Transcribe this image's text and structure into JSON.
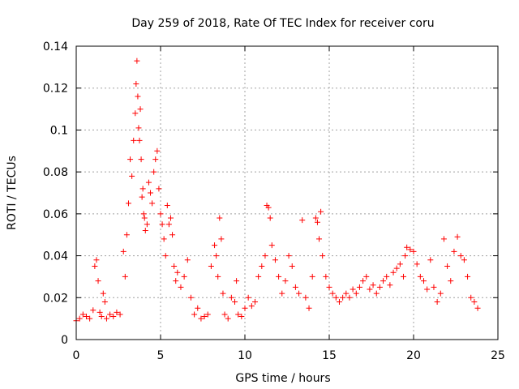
{
  "chart_data": {
    "type": "scatter",
    "title": "Day 259 of 2018, Rate Of TEC Index for receiver coru",
    "xlabel": "GPS time / hours",
    "ylabel": "ROTI / TECUs",
    "xlim": [
      0,
      25
    ],
    "ylim": [
      0,
      0.14
    ],
    "xticks": [
      0,
      5,
      10,
      15,
      20,
      25
    ],
    "xtick_labels": [
      "0",
      "5",
      "10",
      "15",
      "20",
      "25"
    ],
    "yticks": [
      0,
      0.02,
      0.04,
      0.06,
      0.08,
      0.1,
      0.12,
      0.14
    ],
    "ytick_labels": [
      "0",
      "0.02",
      "0.04",
      "0.06",
      "0.08",
      "0.1",
      "0.12",
      "0.14"
    ],
    "grid": true,
    "marker": "plus",
    "color": "#ff0000",
    "series": [
      {
        "x": [
          0.0,
          0.2,
          0.4,
          0.6,
          0.8,
          1.0,
          1.1,
          1.2,
          1.3,
          1.4,
          1.5,
          1.6,
          1.7,
          1.8,
          2.0,
          2.2,
          2.4,
          2.6,
          2.8,
          2.9,
          3.0,
          3.1,
          3.2,
          3.3,
          3.4,
          3.5,
          3.55,
          3.6,
          3.65,
          3.7,
          3.75,
          3.8,
          3.85,
          3.9,
          3.95,
          4.0,
          4.05,
          4.1,
          4.2,
          4.3,
          4.4,
          4.5,
          4.6,
          4.7,
          4.8,
          4.9,
          5.0,
          5.1,
          5.2,
          5.3,
          5.4,
          5.5,
          5.6,
          5.7,
          5.8,
          5.9,
          6.0,
          6.2,
          6.4,
          6.6,
          6.8,
          7.0,
          7.2,
          7.4,
          7.6,
          7.8,
          8.0,
          8.2,
          8.3,
          8.4,
          8.5,
          8.6,
          8.7,
          8.8,
          9.0,
          9.2,
          9.4,
          9.5,
          9.6,
          9.8,
          10.0,
          10.2,
          10.4,
          10.6,
          10.8,
          11.0,
          11.2,
          11.3,
          11.4,
          11.5,
          11.6,
          11.8,
          12.0,
          12.2,
          12.4,
          12.6,
          12.8,
          13.0,
          13.2,
          13.4,
          13.6,
          13.8,
          14.0,
          14.2,
          14.3,
          14.4,
          14.5,
          14.6,
          14.8,
          15.0,
          15.2,
          15.4,
          15.6,
          15.8,
          16.0,
          16.2,
          16.4,
          16.6,
          16.8,
          17.0,
          17.2,
          17.4,
          17.6,
          17.8,
          18.0,
          18.2,
          18.4,
          18.6,
          18.8,
          19.0,
          19.2,
          19.4,
          19.5,
          19.6,
          19.8,
          20.0,
          20.2,
          20.4,
          20.6,
          20.8,
          21.0,
          21.2,
          21.4,
          21.6,
          21.8,
          22.0,
          22.2,
          22.4,
          22.6,
          22.8,
          23.0,
          23.2,
          23.4,
          23.6,
          23.8
        ],
        "y": [
          0.009,
          0.01,
          0.012,
          0.011,
          0.01,
          0.014,
          0.035,
          0.038,
          0.028,
          0.013,
          0.011,
          0.022,
          0.018,
          0.01,
          0.012,
          0.011,
          0.013,
          0.012,
          0.042,
          0.03,
          0.05,
          0.065,
          0.086,
          0.078,
          0.095,
          0.108,
          0.122,
          0.133,
          0.116,
          0.101,
          0.095,
          0.11,
          0.086,
          0.068,
          0.072,
          0.06,
          0.058,
          0.052,
          0.055,
          0.075,
          0.07,
          0.065,
          0.08,
          0.086,
          0.09,
          0.072,
          0.06,
          0.055,
          0.048,
          0.04,
          0.064,
          0.055,
          0.058,
          0.05,
          0.035,
          0.028,
          0.032,
          0.025,
          0.03,
          0.038,
          0.02,
          0.012,
          0.015,
          0.01,
          0.011,
          0.012,
          0.035,
          0.045,
          0.04,
          0.03,
          0.058,
          0.048,
          0.022,
          0.012,
          0.01,
          0.02,
          0.018,
          0.028,
          0.012,
          0.011,
          0.015,
          0.02,
          0.016,
          0.018,
          0.03,
          0.035,
          0.04,
          0.064,
          0.063,
          0.058,
          0.045,
          0.038,
          0.03,
          0.022,
          0.028,
          0.04,
          0.035,
          0.025,
          0.022,
          0.057,
          0.02,
          0.015,
          0.03,
          0.058,
          0.056,
          0.048,
          0.061,
          0.04,
          0.03,
          0.025,
          0.022,
          0.02,
          0.018,
          0.02,
          0.022,
          0.02,
          0.024,
          0.022,
          0.025,
          0.028,
          0.03,
          0.024,
          0.026,
          0.022,
          0.025,
          0.028,
          0.03,
          0.026,
          0.032,
          0.034,
          0.036,
          0.03,
          0.04,
          0.044,
          0.043,
          0.042,
          0.036,
          0.03,
          0.028,
          0.024,
          0.038,
          0.025,
          0.018,
          0.022,
          0.048,
          0.035,
          0.028,
          0.042,
          0.049,
          0.04,
          0.038,
          0.03,
          0.02,
          0.018,
          0.015
        ]
      }
    ]
  }
}
